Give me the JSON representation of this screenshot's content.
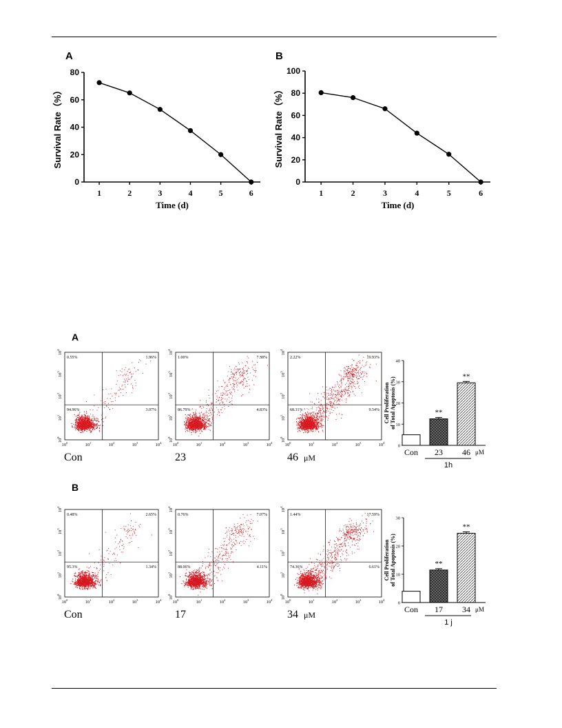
{
  "survival_figure": {
    "panels": [
      {
        "letter": "A",
        "ylabel": "Survival Rate（%）",
        "xlabel": "Time (d)",
        "yticks": [
          0,
          20,
          40,
          60,
          80
        ],
        "xticks": [
          1,
          2,
          3,
          4,
          5,
          6
        ],
        "chart_data": {
          "type": "line",
          "x": [
            1,
            2,
            3,
            4,
            5,
            6
          ],
          "y": [
            72.5,
            65,
            53,
            37.5,
            20,
            0
          ],
          "ylim": [
            0,
            80
          ],
          "xlim": [
            0.5,
            6.3
          ]
        }
      },
      {
        "letter": "B",
        "ylabel": "Survival Rate（%）",
        "xlabel": "Time (d)",
        "yticks": [
          0,
          20,
          40,
          60,
          80,
          100
        ],
        "xticks": [
          1,
          2,
          3,
          4,
          5,
          6
        ],
        "chart_data": {
          "type": "line",
          "x": [
            1,
            2,
            3,
            4,
            5,
            6
          ],
          "y": [
            80.5,
            76,
            66,
            44,
            25,
            0
          ],
          "ylim": [
            0,
            100
          ],
          "xlim": [
            0.5,
            6.3
          ]
        }
      }
    ]
  },
  "flow_figure": {
    "rows": [
      {
        "letter": "A",
        "plots": [
          {
            "label": "Con",
            "q_ul": "0.55%",
            "q_ur": "1.96%",
            "q_ll": "94.96%",
            "q_lr": "3.07%",
            "intensity": 0.1,
            "unit": ""
          },
          {
            "label": "23",
            "q_ul": "1.00%",
            "q_ur": "7.38%",
            "q_ll": "86.79%",
            "q_lr": "4.83%",
            "intensity": 0.5,
            "unit": ""
          },
          {
            "label": "46",
            "q_ul": "2.22%",
            "q_ur": "19.93%",
            "q_ll": "68.31%",
            "q_lr": "9.54%",
            "intensity": 1.0,
            "unit": "μM"
          }
        ],
        "bar": {
          "ylabel_line1": "Cell Proliferation",
          "ylabel_line2": "of Total Apoptosis (%)",
          "yticks": [
            0,
            10,
            20,
            30,
            40
          ],
          "group_label": "1h",
          "unit": "μM",
          "chart_data": {
            "type": "bar",
            "categories": [
              "Con",
              "23",
              "46"
            ],
            "values": [
              5,
              12.5,
              29.5
            ],
            "ylim": [
              0,
              40
            ],
            "significance": [
              "",
              "**",
              "**"
            ]
          }
        }
      },
      {
        "letter": "B",
        "plots": [
          {
            "label": "Con",
            "q_ul": "0.48%",
            "q_ur": "2.65%",
            "q_ll": "95.3%",
            "q_lr": "1.34%",
            "intensity": 0.1,
            "unit": ""
          },
          {
            "label": "17",
            "q_ul": "0.76%",
            "q_ur": "7.07%",
            "q_ll": "88.06%",
            "q_lr": "4.11%",
            "intensity": 0.45,
            "unit": ""
          },
          {
            "label": "34",
            "q_ul": "1.44%",
            "q_ur": "17.59%",
            "q_ll": "74.36%",
            "q_lr": "6.61%",
            "intensity": 0.9,
            "unit": "μM"
          }
        ],
        "bar": {
          "ylabel_line1": "Cell Proliferation",
          "ylabel_line2": "of Total Apoptosis (%)",
          "yticks": [
            0,
            10,
            20,
            30
          ],
          "group_label": "1 j",
          "unit": "μM",
          "chart_data": {
            "type": "bar",
            "categories": [
              "Con",
              "17",
              "34"
            ],
            "values": [
              4,
              11.5,
              24.5
            ],
            "ylim": [
              0,
              30
            ],
            "significance": [
              "",
              "**",
              "**"
            ]
          }
        }
      }
    ],
    "axis_tick_base": "10",
    "axis_tick_exps": [
      "0",
      "1",
      "2",
      "3",
      "4"
    ]
  }
}
